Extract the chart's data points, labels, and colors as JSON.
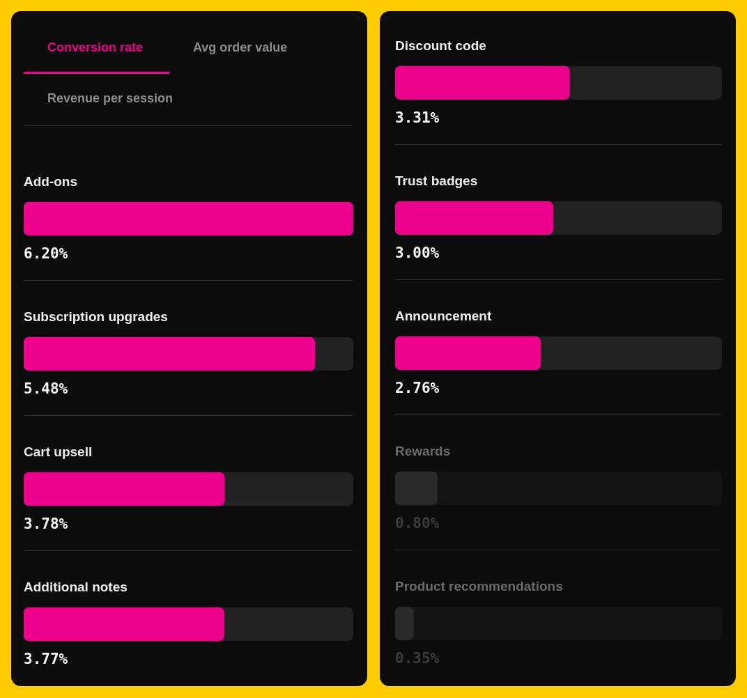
{
  "chart_data": [
    {
      "type": "bar",
      "orientation": "horizontal",
      "title": "Conversion rate",
      "annotations": [
        "Avg order value",
        "Revenue per session"
      ],
      "categories": [
        "Add-ons",
        "Subscription upgrades",
        "Cart upsell",
        "Additional notes"
      ],
      "values": [
        6.2,
        5.48,
        3.78,
        3.77
      ],
      "value_labels": [
        "6.20%",
        "5.48%",
        "3.78%",
        "3.77%"
      ],
      "colors": [
        "#ec008c",
        "#ec008c",
        "#ec008c",
        "#ec008c"
      ],
      "xlim": [
        0,
        6.2
      ],
      "tick_labels": "y"
    },
    {
      "type": "bar",
      "orientation": "horizontal",
      "categories": [
        "Discount code",
        "Trust badges",
        "Announcement",
        "Rewards",
        "Product recommendations"
      ],
      "values": [
        3.31,
        3.0,
        2.76,
        0.8,
        0.35
      ],
      "value_labels": [
        "3.31%",
        "3.00%",
        "2.76%",
        "0.80%",
        "0.35%"
      ],
      "colors": [
        "#ec008c",
        "#ec008c",
        "#ec008c",
        "#2a2a2a",
        "#2a2a2a"
      ],
      "xlim": [
        0,
        6.2
      ],
      "tick_labels": "y"
    }
  ]
}
